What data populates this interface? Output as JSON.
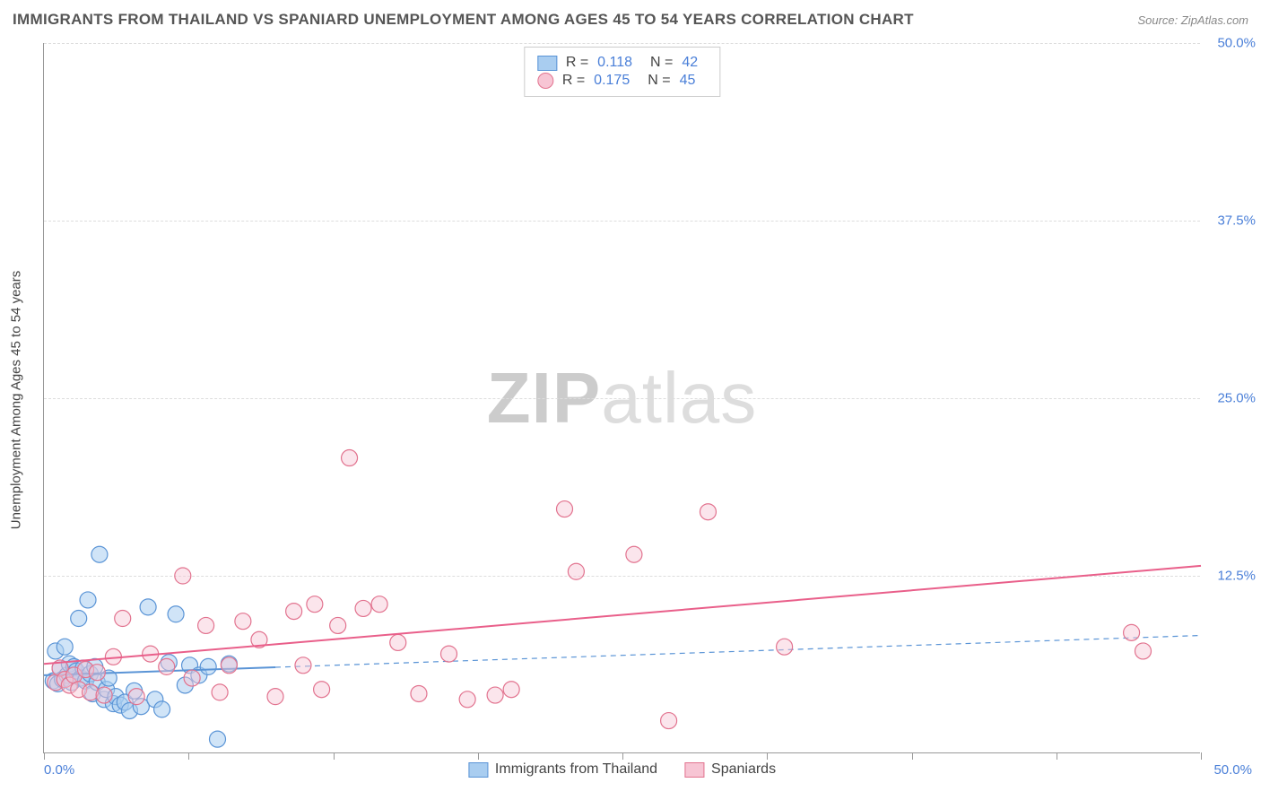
{
  "title": "IMMIGRANTS FROM THAILAND VS SPANIARD UNEMPLOYMENT AMONG AGES 45 TO 54 YEARS CORRELATION CHART",
  "source": "Source: ZipAtlas.com",
  "y_axis_label": "Unemployment Among Ages 45 to 54 years",
  "watermark_bold": "ZIP",
  "watermark_light": "atlas",
  "chart": {
    "type": "scatter",
    "xlim": [
      0,
      50
    ],
    "ylim": [
      0,
      50
    ],
    "x_min_label": "0.0%",
    "x_max_label": "50.0%",
    "y_ticks": [
      12.5,
      25.0,
      37.5,
      50.0
    ],
    "y_tick_labels": [
      "12.5%",
      "25.0%",
      "37.5%",
      "50.0%"
    ],
    "x_tick_positions": [
      0,
      6.25,
      12.5,
      18.75,
      25,
      31.25,
      37.5,
      43.75,
      50
    ],
    "grid_color": "#dddddd",
    "axis_color": "#999999",
    "background_color": "#ffffff",
    "marker_radius": 9,
    "marker_stroke_width": 1.2,
    "trend_line_width": 2,
    "series": [
      {
        "name": "Immigrants from Thailand",
        "fill": "#a9cdf0",
        "stroke": "#5a94d6",
        "fill_opacity": 0.55,
        "R": "0.118",
        "N": "42",
        "trend": {
          "y_at_x0": 5.5,
          "y_at_xmax": 8.3,
          "x_end": 10.0,
          "dashed_extend": true,
          "color": "#5a94d6"
        },
        "points": [
          [
            0.4,
            5.1
          ],
          [
            0.5,
            7.2
          ],
          [
            0.6,
            4.9
          ],
          [
            0.7,
            6.0
          ],
          [
            0.8,
            5.2
          ],
          [
            0.9,
            7.5
          ],
          [
            1.0,
            5.5
          ],
          [
            1.1,
            6.3
          ],
          [
            1.2,
            5.0
          ],
          [
            1.3,
            6.1
          ],
          [
            1.4,
            5.8
          ],
          [
            1.5,
            9.5
          ],
          [
            1.6,
            5.3
          ],
          [
            1.7,
            6.0
          ],
          [
            1.8,
            5.1
          ],
          [
            1.9,
            10.8
          ],
          [
            2.0,
            5.6
          ],
          [
            2.1,
            4.2
          ],
          [
            2.2,
            6.1
          ],
          [
            2.3,
            5.0
          ],
          [
            2.4,
            14.0
          ],
          [
            2.6,
            3.8
          ],
          [
            2.7,
            4.5
          ],
          [
            2.8,
            5.3
          ],
          [
            3.0,
            3.5
          ],
          [
            3.1,
            4.0
          ],
          [
            3.3,
            3.4
          ],
          [
            3.5,
            3.6
          ],
          [
            3.7,
            3.0
          ],
          [
            3.9,
            4.4
          ],
          [
            4.2,
            3.3
          ],
          [
            4.5,
            10.3
          ],
          [
            4.8,
            3.8
          ],
          [
            5.1,
            3.1
          ],
          [
            5.4,
            6.4
          ],
          [
            5.7,
            9.8
          ],
          [
            6.1,
            4.8
          ],
          [
            6.3,
            6.2
          ],
          [
            6.7,
            5.5
          ],
          [
            7.1,
            6.1
          ],
          [
            7.5,
            1.0
          ],
          [
            8.0,
            6.3
          ]
        ]
      },
      {
        "name": "Spaniards",
        "fill": "#f7c5d4",
        "stroke": "#e2738f",
        "fill_opacity": 0.45,
        "R": "0.175",
        "N": "45",
        "trend": {
          "y_at_x0": 6.3,
          "y_at_xmax": 13.2,
          "x_end": 50.0,
          "dashed_extend": false,
          "color": "#e95f8a"
        },
        "points": [
          [
            0.5,
            5.0
          ],
          [
            0.7,
            6.0
          ],
          [
            0.9,
            5.2
          ],
          [
            1.1,
            4.8
          ],
          [
            1.3,
            5.5
          ],
          [
            1.5,
            4.5
          ],
          [
            1.8,
            5.9
          ],
          [
            2.0,
            4.3
          ],
          [
            2.3,
            5.7
          ],
          [
            2.6,
            4.1
          ],
          [
            3.0,
            6.8
          ],
          [
            3.4,
            9.5
          ],
          [
            4.0,
            4.0
          ],
          [
            4.6,
            7.0
          ],
          [
            5.3,
            6.1
          ],
          [
            6.0,
            12.5
          ],
          [
            6.4,
            5.3
          ],
          [
            7.0,
            9.0
          ],
          [
            7.6,
            4.3
          ],
          [
            8.0,
            6.2
          ],
          [
            8.6,
            9.3
          ],
          [
            9.3,
            8.0
          ],
          [
            10.0,
            4.0
          ],
          [
            10.8,
            10.0
          ],
          [
            11.2,
            6.2
          ],
          [
            11.7,
            10.5
          ],
          [
            12.0,
            4.5
          ],
          [
            12.7,
            9.0
          ],
          [
            13.2,
            20.8
          ],
          [
            13.8,
            10.2
          ],
          [
            14.5,
            10.5
          ],
          [
            15.3,
            7.8
          ],
          [
            16.2,
            4.2
          ],
          [
            17.5,
            7.0
          ],
          [
            18.3,
            3.8
          ],
          [
            19.5,
            4.1
          ],
          [
            20.2,
            4.5
          ],
          [
            22.5,
            17.2
          ],
          [
            23.0,
            12.8
          ],
          [
            25.5,
            14.0
          ],
          [
            27.0,
            2.3
          ],
          [
            28.7,
            17.0
          ],
          [
            32.0,
            7.5
          ],
          [
            47.0,
            8.5
          ],
          [
            47.5,
            7.2
          ]
        ]
      }
    ]
  },
  "legend_bottom": [
    {
      "label": "Immigrants from Thailand",
      "fill": "#a9cdf0",
      "stroke": "#5a94d6"
    },
    {
      "label": "Spaniards",
      "fill": "#f7c5d4",
      "stroke": "#e2738f"
    }
  ]
}
